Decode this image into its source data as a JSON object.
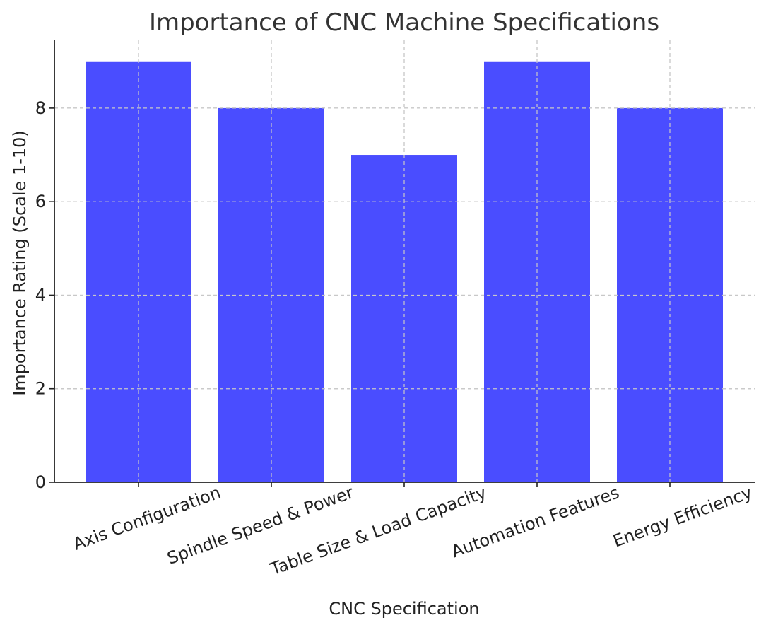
{
  "chart_data": {
    "type": "bar",
    "title": "Importance of CNC Machine Specifications",
    "xlabel": "CNC Specification",
    "ylabel": "Importance Rating (Scale 1-10)",
    "categories": [
      "Axis Configuration",
      "Spindle Speed & Power",
      "Table Size & Load Capacity",
      "Automation Features",
      "Energy Efficiency"
    ],
    "values": [
      9,
      8,
      7,
      9,
      8
    ],
    "ylim": [
      0,
      9.45
    ],
    "yticks": [
      "0",
      "2",
      "4",
      "6",
      "8"
    ],
    "grid": true,
    "bar_color": "#4a4dff",
    "axis_color": "#222222",
    "grid_color": "#c8c8c8"
  }
}
